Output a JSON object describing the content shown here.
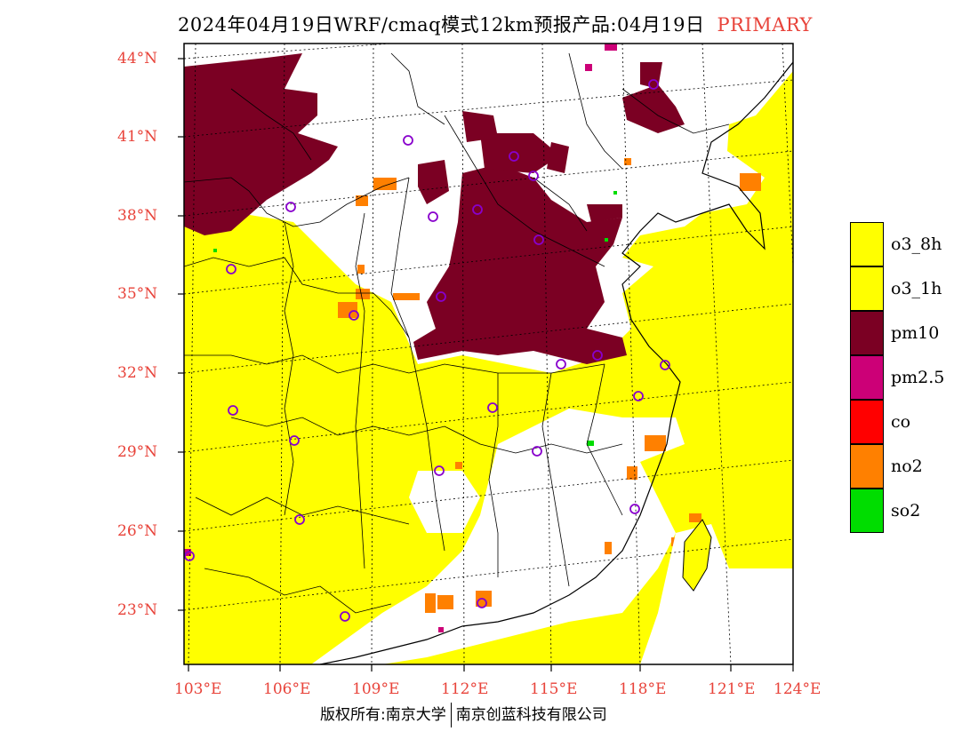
{
  "title": {
    "main": "2024年04月19日WRF/cmaq模式12km预报产品:04月19日",
    "tag": "PRIMARY"
  },
  "axes": {
    "lat_labels": [
      "44°N",
      "41°N",
      "38°N",
      "35°N",
      "32°N",
      "29°N",
      "26°N",
      "23°N"
    ],
    "lon_labels": [
      "103°E",
      "106°E",
      "109°E",
      "112°E",
      "115°E",
      "118°E",
      "121°E",
      "124°E"
    ]
  },
  "legend": [
    {
      "label": "o3_8h",
      "color": "#ffff00"
    },
    {
      "label": "o3_1h",
      "color": "#ffff00"
    },
    {
      "label": "pm10",
      "color": "#7b0023"
    },
    {
      "label": "pm2.5",
      "color": "#cc0077"
    },
    {
      "label": "co",
      "color": "#ff0000"
    },
    {
      "label": "no2",
      "color": "#ff8000"
    },
    {
      "label": "so2",
      "color": "#00dd00"
    }
  ],
  "footer": {
    "left": "版权所有:南京大学",
    "right": "南京创蓝科技有限公司"
  },
  "colors": {
    "label_red": "#e8433a",
    "o3": "#ffff00",
    "pm10": "#7b0023",
    "pm25": "#cc0077",
    "no2": "#ff8000",
    "so2": "#00dd00",
    "station_marker": "#8800cc"
  }
}
